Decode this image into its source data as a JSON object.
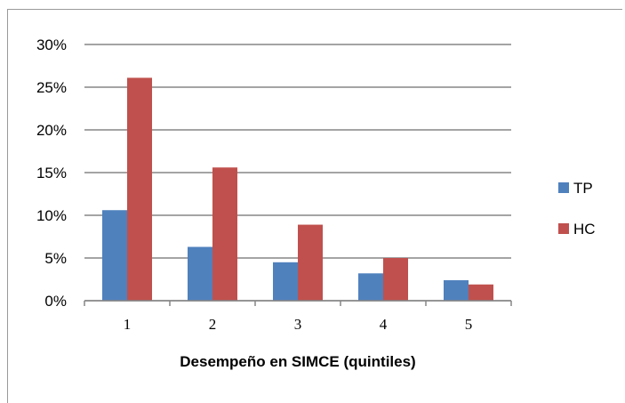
{
  "chart_data": {
    "type": "bar",
    "categories": [
      "1",
      "2",
      "3",
      "4",
      "5"
    ],
    "series": [
      {
        "name": "TP",
        "values": [
          10.6,
          6.3,
          4.5,
          3.2,
          2.4
        ],
        "color": "#4f81bd"
      },
      {
        "name": "HC",
        "values": [
          26.1,
          15.6,
          8.9,
          5.0,
          1.9
        ],
        "color": "#c0504d"
      }
    ],
    "title": "",
    "xlabel": "Desempeño en SIMCE (quintiles)",
    "ylabel": "",
    "ylim": [
      0,
      30
    ],
    "yticks": [
      "0%",
      "5%",
      "10%",
      "15%",
      "20%",
      "25%",
      "30%"
    ],
    "grid": true,
    "legend_position": "right"
  }
}
